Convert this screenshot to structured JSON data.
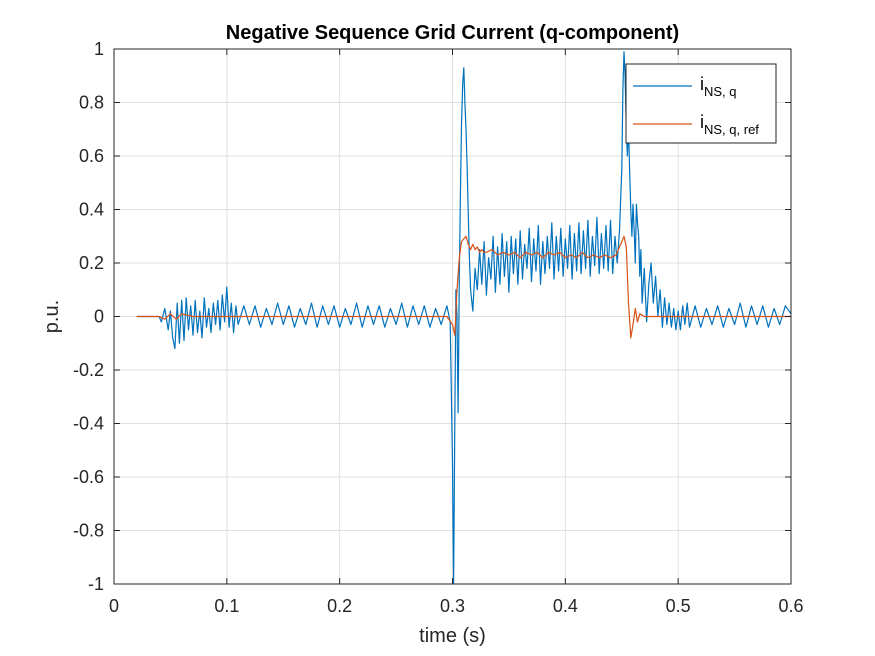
{
  "chart_data": {
    "type": "line",
    "title": "Negative Sequence Grid Current (q-component)",
    "xlabel": "time (s)",
    "ylabel": "p.u.",
    "xlim": [
      0,
      0.6
    ],
    "ylim": [
      -1,
      1
    ],
    "xticks": [
      0,
      0.1,
      0.2,
      0.3,
      0.4,
      0.5,
      0.6
    ],
    "xtick_labels": [
      "0",
      "0.1",
      "0.2",
      "0.3",
      "0.4",
      "0.5",
      "0.6"
    ],
    "yticks": [
      -1,
      -0.8,
      -0.6,
      -0.4,
      -0.2,
      0,
      0.2,
      0.4,
      0.6,
      0.8,
      1
    ],
    "ytick_labels": [
      "-1",
      "-0.8",
      "-0.6",
      "-0.4",
      "-0.2",
      "0",
      "0.2",
      "0.4",
      "0.6",
      "0.8",
      "1"
    ],
    "grid": true,
    "legend_position": "top-right",
    "series": [
      {
        "name": "i_{NS, q}",
        "label_main": "i",
        "label_sub": "NS, q",
        "color": "#0072BD",
        "points": [
          [
            0.02,
            0.0
          ],
          [
            0.04,
            0.0
          ],
          [
            0.042,
            -0.02
          ],
          [
            0.045,
            0.03
          ],
          [
            0.048,
            -0.05
          ],
          [
            0.05,
            0.02
          ],
          [
            0.052,
            -0.08
          ],
          [
            0.054,
            -0.12
          ],
          [
            0.056,
            0.05
          ],
          [
            0.058,
            -0.1
          ],
          [
            0.06,
            0.06
          ],
          [
            0.062,
            -0.09
          ],
          [
            0.064,
            0.07
          ],
          [
            0.066,
            -0.05
          ],
          [
            0.068,
            0.04
          ],
          [
            0.07,
            -0.07
          ],
          [
            0.072,
            0.06
          ],
          [
            0.074,
            -0.06
          ],
          [
            0.076,
            0.02
          ],
          [
            0.078,
            -0.08
          ],
          [
            0.08,
            0.07
          ],
          [
            0.082,
            -0.04
          ],
          [
            0.084,
            0.03
          ],
          [
            0.086,
            -0.06
          ],
          [
            0.088,
            0.05
          ],
          [
            0.09,
            -0.03
          ],
          [
            0.092,
            0.06
          ],
          [
            0.094,
            -0.05
          ],
          [
            0.096,
            0.08
          ],
          [
            0.098,
            -0.02
          ],
          [
            0.1,
            0.11
          ],
          [
            0.102,
            -0.04
          ],
          [
            0.104,
            0.05
          ],
          [
            0.106,
            -0.06
          ],
          [
            0.108,
            0.04
          ],
          [
            0.11,
            -0.03
          ],
          [
            0.115,
            0.04
          ],
          [
            0.12,
            -0.03
          ],
          [
            0.125,
            0.04
          ],
          [
            0.13,
            -0.04
          ],
          [
            0.135,
            0.03
          ],
          [
            0.14,
            -0.03
          ],
          [
            0.145,
            0.05
          ],
          [
            0.15,
            -0.03
          ],
          [
            0.155,
            0.04
          ],
          [
            0.16,
            -0.04
          ],
          [
            0.165,
            0.03
          ],
          [
            0.17,
            -0.03
          ],
          [
            0.175,
            0.05
          ],
          [
            0.18,
            -0.04
          ],
          [
            0.185,
            0.04
          ],
          [
            0.19,
            -0.03
          ],
          [
            0.195,
            0.04
          ],
          [
            0.2,
            -0.04
          ],
          [
            0.205,
            0.03
          ],
          [
            0.21,
            -0.03
          ],
          [
            0.215,
            0.05
          ],
          [
            0.22,
            -0.04
          ],
          [
            0.225,
            0.04
          ],
          [
            0.23,
            -0.03
          ],
          [
            0.235,
            0.04
          ],
          [
            0.24,
            -0.04
          ],
          [
            0.245,
            0.03
          ],
          [
            0.25,
            -0.03
          ],
          [
            0.255,
            0.05
          ],
          [
            0.26,
            -0.04
          ],
          [
            0.265,
            0.04
          ],
          [
            0.27,
            -0.03
          ],
          [
            0.275,
            0.04
          ],
          [
            0.28,
            -0.04
          ],
          [
            0.285,
            0.03
          ],
          [
            0.29,
            -0.03
          ],
          [
            0.295,
            0.04
          ],
          [
            0.298,
            -0.02
          ],
          [
            0.3,
            -0.55
          ],
          [
            0.301,
            -1.0
          ],
          [
            0.302,
            -0.4
          ],
          [
            0.303,
            0.1
          ],
          [
            0.304,
            0.0
          ],
          [
            0.305,
            -0.36
          ],
          [
            0.306,
            0.15
          ],
          [
            0.307,
            0.45
          ],
          [
            0.308,
            0.72
          ],
          [
            0.309,
            0.87
          ],
          [
            0.31,
            0.93
          ],
          [
            0.311,
            0.8
          ],
          [
            0.312,
            0.7
          ],
          [
            0.313,
            0.55
          ],
          [
            0.314,
            0.38
          ],
          [
            0.315,
            0.22
          ],
          [
            0.316,
            0.1
          ],
          [
            0.318,
            0.02
          ],
          [
            0.32,
            0.18
          ],
          [
            0.322,
            0.1
          ],
          [
            0.324,
            0.25
          ],
          [
            0.326,
            0.12
          ],
          [
            0.328,
            0.28
          ],
          [
            0.33,
            0.08
          ],
          [
            0.332,
            0.22
          ],
          [
            0.334,
            0.14
          ],
          [
            0.336,
            0.3
          ],
          [
            0.338,
            0.09
          ],
          [
            0.34,
            0.26
          ],
          [
            0.342,
            0.12
          ],
          [
            0.344,
            0.31
          ],
          [
            0.346,
            0.15
          ],
          [
            0.348,
            0.28
          ],
          [
            0.35,
            0.09
          ],
          [
            0.352,
            0.3
          ],
          [
            0.354,
            0.16
          ],
          [
            0.356,
            0.29
          ],
          [
            0.358,
            0.12
          ],
          [
            0.36,
            0.32
          ],
          [
            0.362,
            0.14
          ],
          [
            0.364,
            0.27
          ],
          [
            0.366,
            0.18
          ],
          [
            0.368,
            0.33
          ],
          [
            0.37,
            0.13
          ],
          [
            0.372,
            0.29
          ],
          [
            0.374,
            0.17
          ],
          [
            0.376,
            0.34
          ],
          [
            0.378,
            0.12
          ],
          [
            0.38,
            0.28
          ],
          [
            0.382,
            0.16
          ],
          [
            0.384,
            0.3
          ],
          [
            0.386,
            0.18
          ],
          [
            0.388,
            0.35
          ],
          [
            0.39,
            0.14
          ],
          [
            0.392,
            0.3
          ],
          [
            0.394,
            0.17
          ],
          [
            0.396,
            0.33
          ],
          [
            0.398,
            0.15
          ],
          [
            0.4,
            0.29
          ],
          [
            0.402,
            0.18
          ],
          [
            0.404,
            0.34
          ],
          [
            0.406,
            0.14
          ],
          [
            0.408,
            0.31
          ],
          [
            0.41,
            0.17
          ],
          [
            0.412,
            0.35
          ],
          [
            0.414,
            0.16
          ],
          [
            0.416,
            0.32
          ],
          [
            0.418,
            0.18
          ],
          [
            0.42,
            0.36
          ],
          [
            0.422,
            0.15
          ],
          [
            0.424,
            0.3
          ],
          [
            0.426,
            0.19
          ],
          [
            0.428,
            0.37
          ],
          [
            0.43,
            0.16
          ],
          [
            0.432,
            0.31
          ],
          [
            0.434,
            0.18
          ],
          [
            0.436,
            0.34
          ],
          [
            0.438,
            0.17
          ],
          [
            0.44,
            0.36
          ],
          [
            0.442,
            0.16
          ],
          [
            0.444,
            0.3
          ],
          [
            0.446,
            0.2
          ],
          [
            0.448,
            0.32
          ],
          [
            0.45,
            0.55
          ],
          [
            0.451,
            0.85
          ],
          [
            0.452,
            0.99
          ],
          [
            0.453,
            0.9
          ],
          [
            0.454,
            0.7
          ],
          [
            0.455,
            0.6
          ],
          [
            0.456,
            0.72
          ],
          [
            0.457,
            0.55
          ],
          [
            0.458,
            0.4
          ],
          [
            0.459,
            0.3
          ],
          [
            0.46,
            0.42
          ],
          [
            0.461,
            0.32
          ],
          [
            0.462,
            0.2
          ],
          [
            0.463,
            0.42
          ],
          [
            0.464,
            0.35
          ],
          [
            0.465,
            0.3
          ],
          [
            0.466,
            0.15
          ],
          [
            0.467,
            0.25
          ],
          [
            0.468,
            0.05
          ],
          [
            0.47,
            0.18
          ],
          [
            0.472,
            -0.02
          ],
          [
            0.474,
            0.12
          ],
          [
            0.476,
            0.2
          ],
          [
            0.478,
            0.05
          ],
          [
            0.48,
            0.15
          ],
          [
            0.482,
            0.0
          ],
          [
            0.484,
            0.1
          ],
          [
            0.486,
            -0.04
          ],
          [
            0.488,
            0.07
          ],
          [
            0.49,
            -0.03
          ],
          [
            0.492,
            0.05
          ],
          [
            0.494,
            -0.04
          ],
          [
            0.496,
            0.03
          ],
          [
            0.498,
            -0.05
          ],
          [
            0.5,
            0.02
          ],
          [
            0.502,
            -0.05
          ],
          [
            0.504,
            0.04
          ],
          [
            0.506,
            -0.03
          ],
          [
            0.508,
            0.05
          ],
          [
            0.51,
            -0.04
          ],
          [
            0.515,
            0.04
          ],
          [
            0.52,
            -0.04
          ],
          [
            0.525,
            0.03
          ],
          [
            0.53,
            -0.03
          ],
          [
            0.535,
            0.04
          ],
          [
            0.54,
            -0.04
          ],
          [
            0.545,
            0.03
          ],
          [
            0.55,
            -0.03
          ],
          [
            0.555,
            0.05
          ],
          [
            0.56,
            -0.04
          ],
          [
            0.565,
            0.04
          ],
          [
            0.57,
            -0.03
          ],
          [
            0.575,
            0.04
          ],
          [
            0.58,
            -0.04
          ],
          [
            0.585,
            0.03
          ],
          [
            0.59,
            -0.03
          ],
          [
            0.595,
            0.04
          ],
          [
            0.6,
            0.01
          ]
        ]
      },
      {
        "name": "i_{NS, q, ref}",
        "label_main": "i",
        "label_sub": "NS, q, ref",
        "color": "#D95319",
        "points": [
          [
            0.02,
            0.0
          ],
          [
            0.04,
            0.0
          ],
          [
            0.045,
            -0.01
          ],
          [
            0.05,
            0.01
          ],
          [
            0.055,
            -0.01
          ],
          [
            0.06,
            0.01
          ],
          [
            0.07,
            0.0
          ],
          [
            0.08,
            0.0
          ],
          [
            0.1,
            0.0
          ],
          [
            0.15,
            0.0
          ],
          [
            0.2,
            0.0
          ],
          [
            0.25,
            0.0
          ],
          [
            0.295,
            0.0
          ],
          [
            0.3,
            -0.03
          ],
          [
            0.302,
            -0.07
          ],
          [
            0.304,
            0.1
          ],
          [
            0.306,
            0.22
          ],
          [
            0.308,
            0.28
          ],
          [
            0.31,
            0.29
          ],
          [
            0.312,
            0.3
          ],
          [
            0.314,
            0.27
          ],
          [
            0.316,
            0.25
          ],
          [
            0.318,
            0.27
          ],
          [
            0.32,
            0.25
          ],
          [
            0.322,
            0.26
          ],
          [
            0.324,
            0.24
          ],
          [
            0.326,
            0.25
          ],
          [
            0.328,
            0.24
          ],
          [
            0.33,
            0.24
          ],
          [
            0.335,
            0.25
          ],
          [
            0.34,
            0.23
          ],
          [
            0.345,
            0.24
          ],
          [
            0.35,
            0.23
          ],
          [
            0.355,
            0.24
          ],
          [
            0.36,
            0.22
          ],
          [
            0.365,
            0.24
          ],
          [
            0.37,
            0.23
          ],
          [
            0.375,
            0.24
          ],
          [
            0.38,
            0.22
          ],
          [
            0.385,
            0.24
          ],
          [
            0.39,
            0.23
          ],
          [
            0.395,
            0.24
          ],
          [
            0.4,
            0.22
          ],
          [
            0.405,
            0.23
          ],
          [
            0.41,
            0.22
          ],
          [
            0.415,
            0.24
          ],
          [
            0.42,
            0.22
          ],
          [
            0.425,
            0.23
          ],
          [
            0.43,
            0.22
          ],
          [
            0.435,
            0.23
          ],
          [
            0.44,
            0.22
          ],
          [
            0.445,
            0.23
          ],
          [
            0.45,
            0.28
          ],
          [
            0.452,
            0.3
          ],
          [
            0.454,
            0.26
          ],
          [
            0.456,
            0.05
          ],
          [
            0.458,
            -0.08
          ],
          [
            0.46,
            -0.03
          ],
          [
            0.462,
            0.03
          ],
          [
            0.464,
            -0.02
          ],
          [
            0.466,
            0.01
          ],
          [
            0.47,
            0.0
          ],
          [
            0.48,
            0.0
          ],
          [
            0.5,
            0.0
          ],
          [
            0.55,
            0.0
          ],
          [
            0.6,
            0.0
          ]
        ]
      }
    ]
  }
}
